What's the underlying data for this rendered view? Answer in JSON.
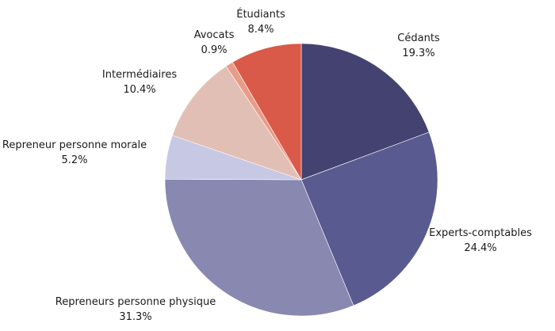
{
  "chart_data": {
    "type": "pie",
    "title": "",
    "start_angle_deg": 0,
    "direction": "clockwise",
    "slices": [
      {
        "label": "Cédants",
        "value": 19.3,
        "value_text": "19.3%",
        "color": "#444270"
      },
      {
        "label": "Experts-comptables",
        "value": 24.4,
        "value_text": "24.4%",
        "color": "#595a8f"
      },
      {
        "label": "Repreneurs personne physique",
        "value": 31.3,
        "value_text": "31.3%",
        "color": "#8888b0"
      },
      {
        "label": "Repreneur personne morale",
        "value": 5.2,
        "value_text": "5.2%",
        "color": "#c7c8e4"
      },
      {
        "label": "Intermédiaires",
        "value": 10.4,
        "value_text": "10.4%",
        "color": "#e2bfb4"
      },
      {
        "label": "Avocats",
        "value": 0.9,
        "value_text": "0.9%",
        "color": "#e89c88"
      },
      {
        "label": "Étudiants",
        "value": 8.4,
        "value_text": "8.4%",
        "color": "#d95a49"
      }
    ]
  }
}
